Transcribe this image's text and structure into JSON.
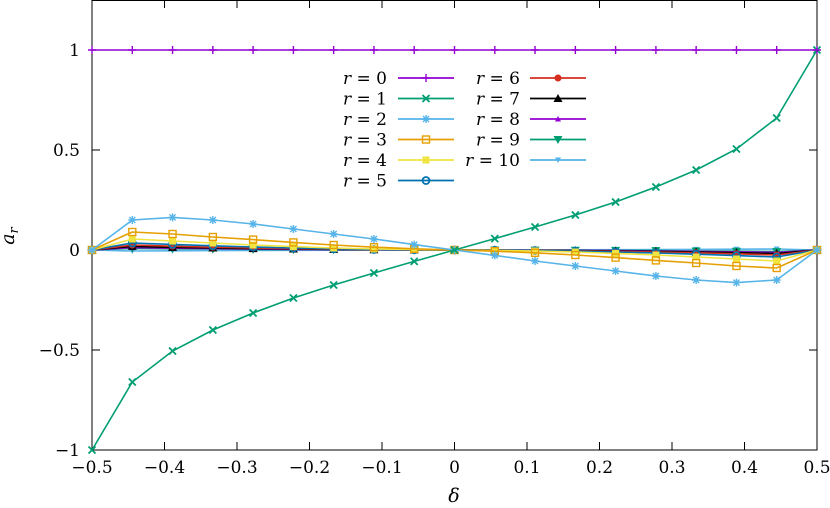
{
  "chart_data": {
    "type": "line",
    "title": "",
    "xlabel": "δ",
    "ylabel": "a_r",
    "xlim": [
      -0.5,
      0.5
    ],
    "ylim": [
      -1,
      1.25
    ],
    "grid": false,
    "legend_position": "top-center",
    "x_ticks": [
      -0.5,
      -0.4,
      -0.3,
      -0.2,
      -0.1,
      0,
      0.1,
      0.2,
      0.3,
      0.4,
      0.5
    ],
    "x_tick_labels": [
      "−0.5",
      "−0.4",
      "−0.3",
      "−0.2",
      "−0.1",
      "0",
      "0.1",
      "0.2",
      "0.3",
      "0.4",
      "0.5"
    ],
    "y_ticks": [
      -1,
      -0.5,
      0,
      0.5,
      1
    ],
    "y_tick_labels": [
      "−1",
      "−0.5",
      "0",
      "0.5",
      "1"
    ],
    "x": [
      -0.5,
      -0.4444,
      -0.3889,
      -0.3333,
      -0.2778,
      -0.2222,
      -0.1667,
      -0.1111,
      -0.0556,
      0,
      0.0556,
      0.1111,
      0.1667,
      0.2222,
      0.2778,
      0.3333,
      0.3889,
      0.4444,
      0.5
    ],
    "series": [
      {
        "name": "r = 0",
        "r_label": "0",
        "color": "#9400d3",
        "marker": "plus",
        "values": [
          1,
          1,
          1,
          1,
          1,
          1,
          1,
          1,
          1,
          1,
          1,
          1,
          1,
          1,
          1,
          1,
          1,
          1,
          1
        ]
      },
      {
        "name": "r = 1",
        "r_label": "1",
        "color": "#009e73",
        "marker": "cross",
        "values": [
          -1,
          -0.66,
          -0.505,
          -0.4,
          -0.315,
          -0.24,
          -0.175,
          -0.115,
          -0.057,
          0,
          0.057,
          0.115,
          0.175,
          0.24,
          0.315,
          0.4,
          0.505,
          0.66,
          1
        ]
      },
      {
        "name": "r = 2",
        "r_label": "2",
        "color": "#56b4e9",
        "marker": "star",
        "values": [
          0,
          0.15,
          0.163,
          0.15,
          0.13,
          0.105,
          0.08,
          0.055,
          0.027,
          0,
          -0.027,
          -0.055,
          -0.08,
          -0.105,
          -0.13,
          -0.15,
          -0.163,
          -0.15,
          0
        ]
      },
      {
        "name": "r = 3",
        "r_label": "3",
        "color": "#e69f00",
        "marker": "box",
        "values": [
          0,
          0.09,
          0.08,
          0.065,
          0.052,
          0.038,
          0.025,
          0.014,
          0.006,
          0,
          -0.006,
          -0.014,
          -0.025,
          -0.038,
          -0.052,
          -0.065,
          -0.08,
          -0.09,
          0
        ]
      },
      {
        "name": "r = 4",
        "r_label": "4",
        "color": "#f0e442",
        "marker": "fbox",
        "values": [
          0,
          0.055,
          0.045,
          0.035,
          0.025,
          0.017,
          0.01,
          0.005,
          0.002,
          0,
          -0.002,
          -0.005,
          -0.01,
          -0.017,
          -0.025,
          -0.035,
          -0.045,
          -0.055,
          0
        ]
      },
      {
        "name": "r = 5",
        "r_label": "5",
        "color": "#0072b2",
        "marker": "circle",
        "values": [
          0,
          0.035,
          0.028,
          0.021,
          0.015,
          0.01,
          0.006,
          0.003,
          0.001,
          0,
          -0.001,
          -0.003,
          -0.006,
          -0.01,
          -0.015,
          -0.021,
          -0.028,
          -0.035,
          0
        ]
      },
      {
        "name": "r = 6",
        "r_label": "6",
        "color": "#d52e1f",
        "marker": "fcircle",
        "values": [
          0,
          0.025,
          0.019,
          0.014,
          0.01,
          0.007,
          0.004,
          0.002,
          0.001,
          0,
          -0.001,
          -0.002,
          -0.004,
          -0.007,
          -0.01,
          -0.014,
          -0.019,
          -0.025,
          0
        ]
      },
      {
        "name": "r = 7",
        "r_label": "7",
        "color": "#000000",
        "marker": "triangle",
        "values": [
          0,
          0.018,
          0.013,
          0.01,
          0.007,
          0.005,
          0.003,
          0.0015,
          0.0005,
          0,
          -0.0005,
          -0.0015,
          -0.003,
          -0.005,
          -0.007,
          -0.01,
          -0.013,
          -0.018,
          0
        ]
      },
      {
        "name": "r = 8",
        "r_label": "8",
        "color": "#9400d3",
        "marker": "smalltriangle",
        "values": [
          0,
          0.012,
          0.009,
          0.007,
          0.005,
          0.003,
          0.002,
          0.001,
          0.0003,
          0,
          -0.0003,
          -0.001,
          -0.002,
          -0.003,
          -0.005,
          -0.007,
          -0.009,
          -0.012,
          0
        ]
      },
      {
        "name": "r = 9",
        "r_label": "9",
        "color": "#009e73",
        "marker": "invtriangle",
        "values": [
          0,
          0.008,
          0.006,
          0.005,
          0.003,
          0.002,
          0.0013,
          0.0007,
          0.0002,
          0,
          -0.0002,
          -0.0007,
          -0.0013,
          -0.002,
          -0.003,
          -0.005,
          -0.006,
          -0.008,
          0
        ]
      },
      {
        "name": "r = 10",
        "r_label": "10",
        "color": "#56b4e9",
        "marker": "smallinvtriangle",
        "values": [
          0,
          -0.005,
          -0.004,
          -0.003,
          -0.002,
          -0.0015,
          -0.001,
          -0.0005,
          -0.0002,
          0,
          0.0002,
          0.0005,
          0.001,
          0.0015,
          0.002,
          0.003,
          0.004,
          0.005,
          0
        ]
      }
    ]
  }
}
